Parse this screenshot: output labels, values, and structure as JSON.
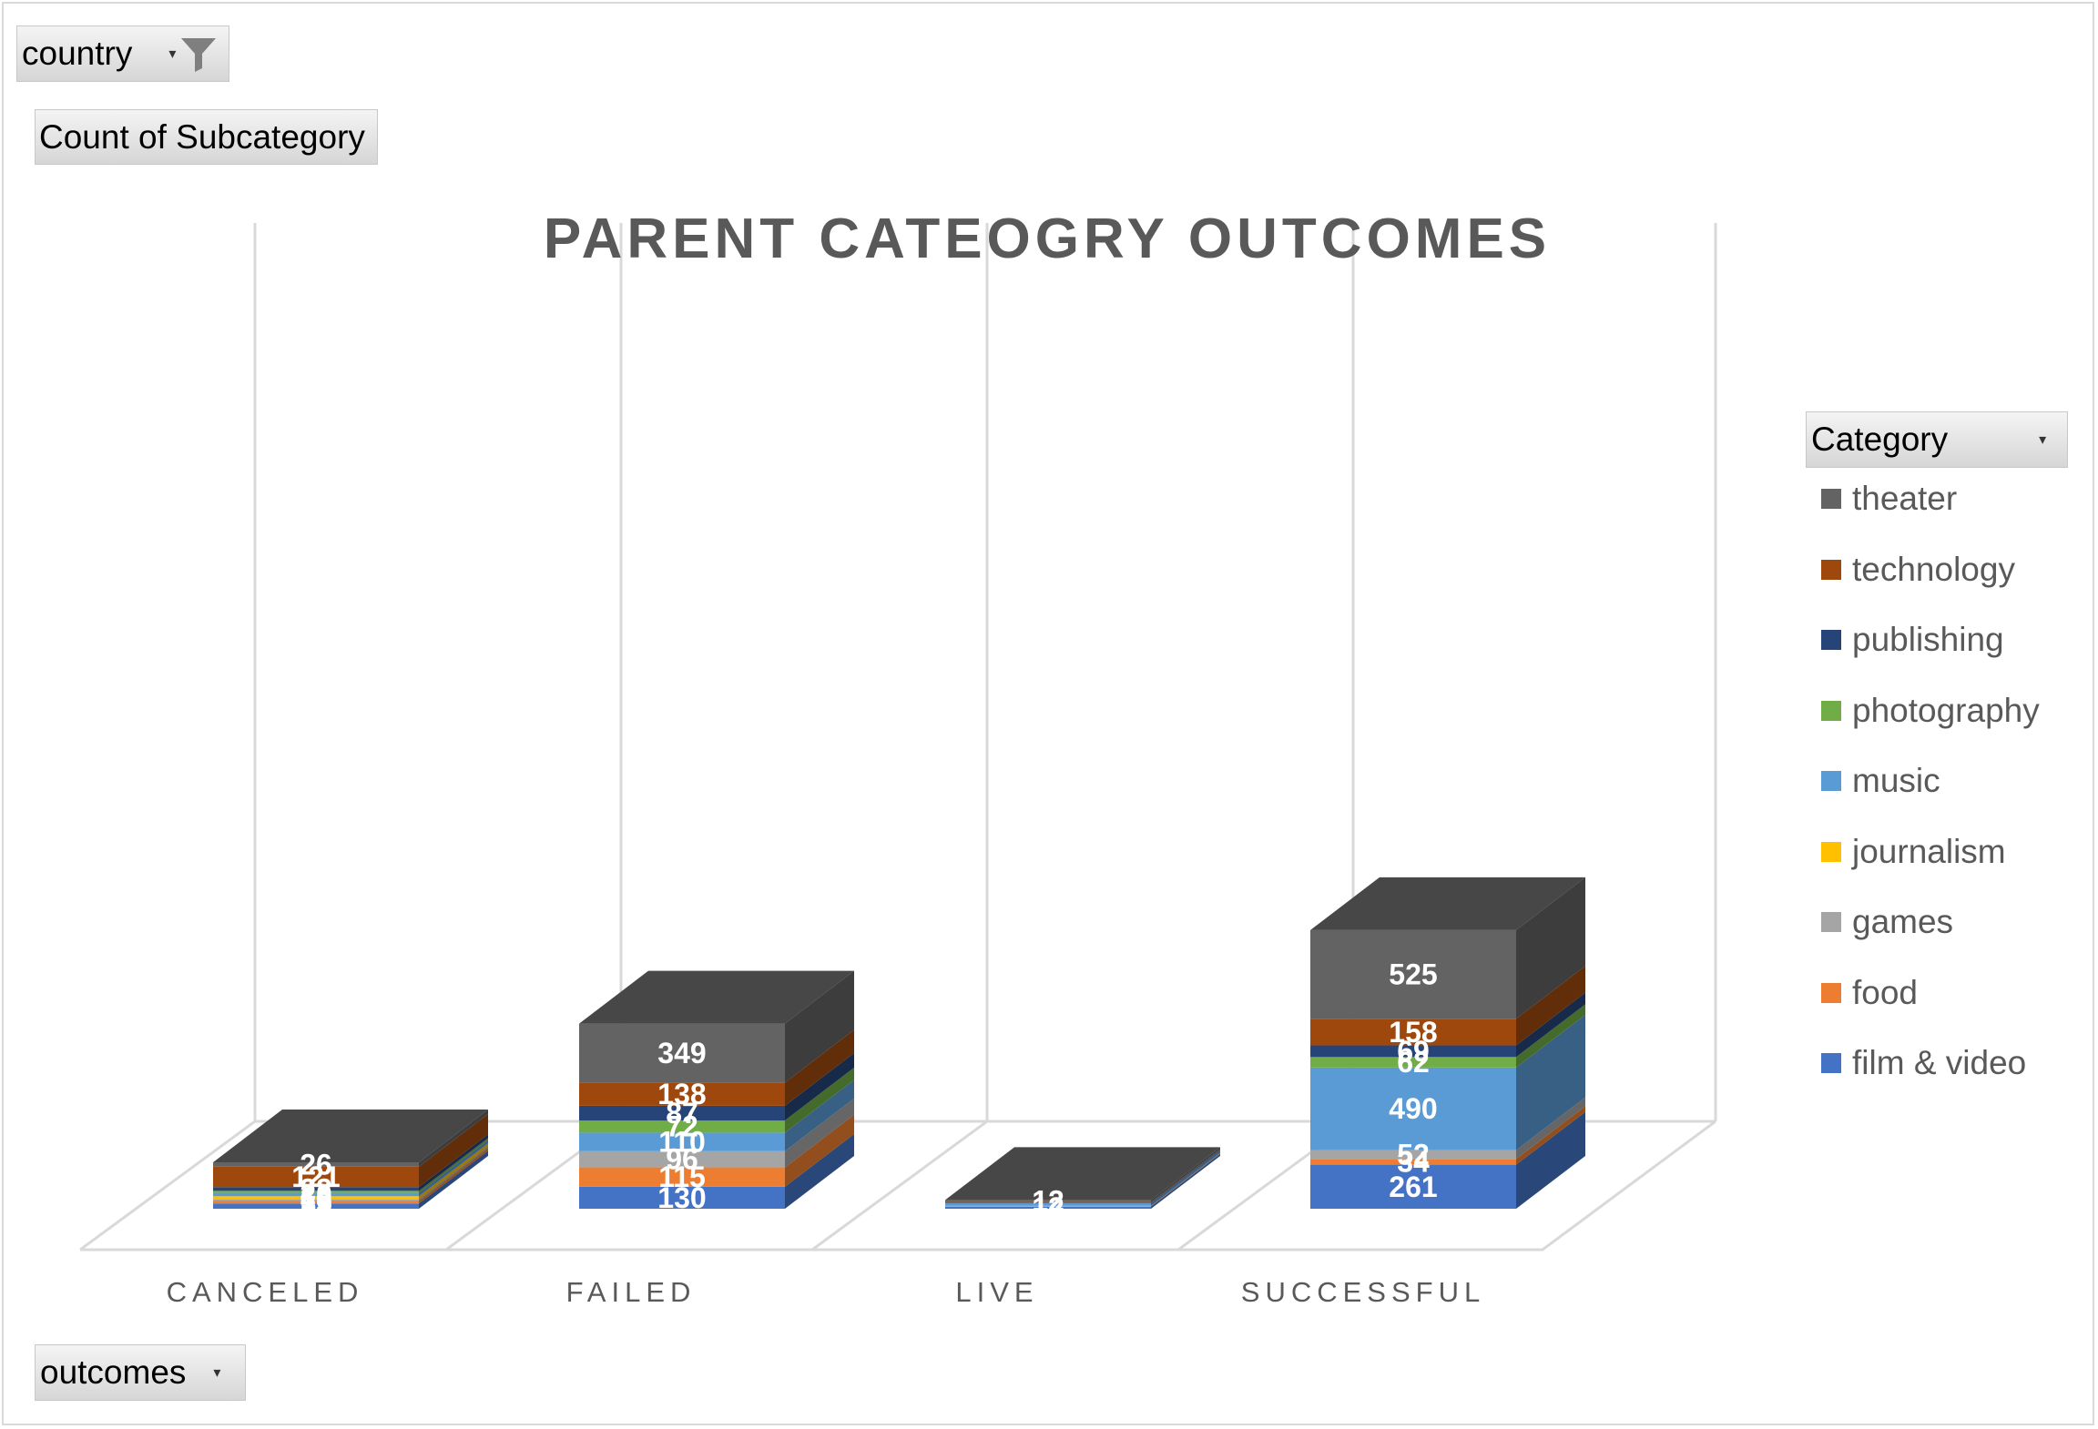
{
  "filters": {
    "country_label": "country",
    "value_label": "Count of Subcategory",
    "axis_field_label": "outcomes",
    "legend_field_label": "Category"
  },
  "icons": {
    "filter": "filter-funnel-icon",
    "dropdown": "chevron-down-icon"
  },
  "chart_data": {
    "type": "bar",
    "stacked": true,
    "three_d": true,
    "title": "PARENT CATEOGRY OUTCOMES",
    "xlabel": "",
    "ylabel": "",
    "categories": [
      "CANCELED",
      "FAILED",
      "LIVE",
      "SUCCESSFUL"
    ],
    "legend_position": "right",
    "grid": true,
    "series": [
      {
        "name": "film & video",
        "color": "#4472C4",
        "values": [
          31,
          130,
          12,
          261
        ]
      },
      {
        "name": "food",
        "color": "#ED7D31",
        "values": [
          15,
          115,
          3,
          34
        ]
      },
      {
        "name": "games",
        "color": "#A5A5A5",
        "values": [
          10,
          96,
          2,
          52
        ]
      },
      {
        "name": "journalism",
        "color": "#FFC000",
        "values": [
          18,
          0,
          0,
          0
        ]
      },
      {
        "name": "music",
        "color": "#5B9BD5",
        "values": [
          20,
          110,
          16,
          490
        ]
      },
      {
        "name": "photography",
        "color": "#70AD47",
        "values": [
          12,
          72,
          0,
          62
        ]
      },
      {
        "name": "publishing",
        "color": "#264478",
        "values": [
          22,
          87,
          4,
          69
        ]
      },
      {
        "name": "technology",
        "color": "#9E480E",
        "values": [
          121,
          138,
          3,
          158
        ]
      },
      {
        "name": "theater",
        "color": "#636363",
        "values": [
          26,
          349,
          12,
          525
        ]
      }
    ],
    "data_labels": [
      [
        "31",
        "130",
        "12",
        "261"
      ],
      [
        "15",
        "115",
        "",
        "34"
      ],
      [
        "10",
        "96",
        "",
        "52"
      ],
      [
        "18",
        "",
        "",
        ""
      ],
      [
        "20",
        "110",
        "",
        "490"
      ],
      [
        "",
        "72",
        "",
        "62"
      ],
      [
        "22",
        "87",
        "",
        "69"
      ],
      [
        "121",
        "138",
        "",
        "158"
      ],
      [
        "26",
        "349",
        "12",
        "525"
      ]
    ]
  }
}
